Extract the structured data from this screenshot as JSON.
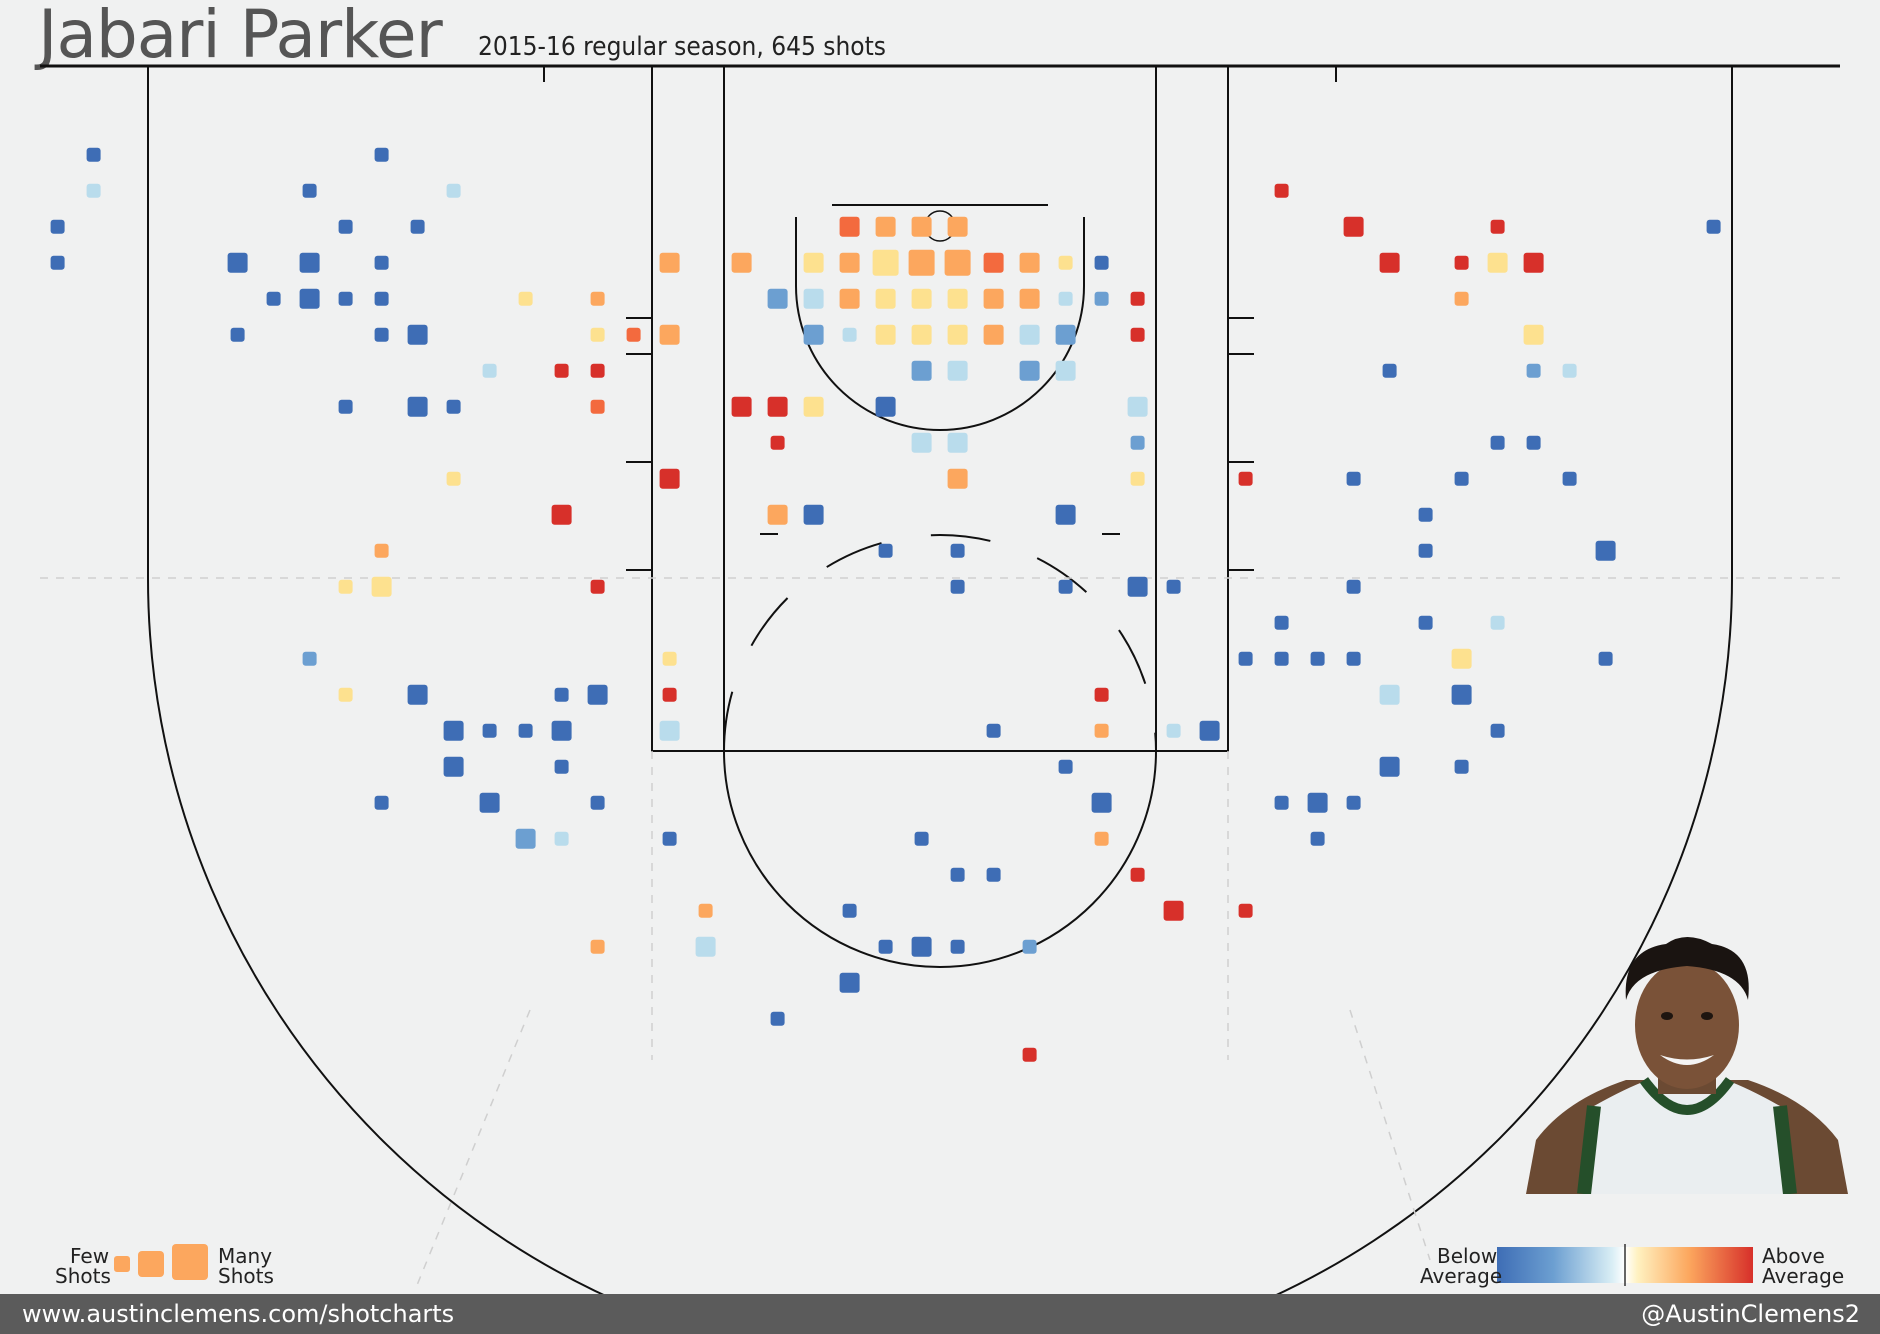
{
  "header": {
    "title": "Jabari Parker",
    "subtitle": "2015-16 regular season, 645 shots"
  },
  "legend": {
    "size_low": "Few",
    "size_low2": "Shots",
    "size_high": "Many",
    "size_high2": "Shots",
    "color_low": "Below",
    "color_low2": "Average",
    "color_high": "Above",
    "color_high2": "Average"
  },
  "footer": {
    "website": "www.austinclemens.com/shotcharts",
    "handle": "@AustinClemens2"
  },
  "colors": {
    "background": "#f0f1f1",
    "line": "#111111",
    "footer": "#5b5b5b",
    "scale": [
      "#3e6db5",
      "#6c9fd1",
      "#b9dcec",
      "#fde18f",
      "#fca75e",
      "#f36a3e",
      "#d7302a"
    ]
  },
  "chart_data": {
    "type": "scatter",
    "title": "Jabari Parker",
    "subtitle": "2015-16 regular season, 645 shots",
    "x_unit": "court column",
    "y_unit": "court row",
    "size_scale": "Few Shots to Many Shots",
    "color_scale": "Below Average to Above Average",
    "points": [
      {
        "x": 2.6,
        "y": 4.3,
        "c": 0,
        "s": 1
      },
      {
        "x": 2.6,
        "y": 5.3,
        "c": 2,
        "s": 1
      },
      {
        "x": 1.6,
        "y": 6.3,
        "c": 0,
        "s": 1
      },
      {
        "x": 1.6,
        "y": 7.3,
        "c": 0,
        "s": 1
      },
      {
        "x": 10.6,
        "y": 4.3,
        "c": 0,
        "s": 1
      },
      {
        "x": 8.6,
        "y": 5.3,
        "c": 0,
        "s": 1
      },
      {
        "x": 12.6,
        "y": 5.3,
        "c": 2,
        "s": 1
      },
      {
        "x": 9.6,
        "y": 6.3,
        "c": 0,
        "s": 1
      },
      {
        "x": 11.6,
        "y": 6.3,
        "c": 0,
        "s": 1
      },
      {
        "x": 6.6,
        "y": 7.3,
        "c": 0,
        "s": 2
      },
      {
        "x": 8.6,
        "y": 7.3,
        "c": 0,
        "s": 2
      },
      {
        "x": 10.6,
        "y": 7.3,
        "c": 0,
        "s": 1
      },
      {
        "x": 7.6,
        "y": 8.3,
        "c": 0,
        "s": 1
      },
      {
        "x": 8.6,
        "y": 8.3,
        "c": 0,
        "s": 2
      },
      {
        "x": 9.6,
        "y": 8.3,
        "c": 0,
        "s": 1
      },
      {
        "x": 10.6,
        "y": 8.3,
        "c": 0,
        "s": 1
      },
      {
        "x": 14.6,
        "y": 8.3,
        "c": 3,
        "s": 1
      },
      {
        "x": 16.6,
        "y": 8.3,
        "c": 4,
        "s": 1
      },
      {
        "x": 6.6,
        "y": 9.3,
        "c": 0,
        "s": 1
      },
      {
        "x": 10.6,
        "y": 9.3,
        "c": 0,
        "s": 1
      },
      {
        "x": 11.6,
        "y": 9.3,
        "c": 0,
        "s": 2
      },
      {
        "x": 16.6,
        "y": 9.3,
        "c": 3,
        "s": 1
      },
      {
        "x": 17.6,
        "y": 9.3,
        "c": 5,
        "s": 1
      },
      {
        "x": 13.6,
        "y": 10.3,
        "c": 2,
        "s": 1
      },
      {
        "x": 15.6,
        "y": 10.3,
        "c": 6,
        "s": 1
      },
      {
        "x": 16.6,
        "y": 10.3,
        "c": 6,
        "s": 1
      },
      {
        "x": 9.6,
        "y": 11.3,
        "c": 0,
        "s": 1
      },
      {
        "x": 11.6,
        "y": 11.3,
        "c": 0,
        "s": 2
      },
      {
        "x": 12.6,
        "y": 11.3,
        "c": 0,
        "s": 1
      },
      {
        "x": 16.6,
        "y": 11.3,
        "c": 5,
        "s": 1
      },
      {
        "x": 12.6,
        "y": 13.3,
        "c": 3,
        "s": 1
      },
      {
        "x": 15.6,
        "y": 14.3,
        "c": 6,
        "s": 2
      },
      {
        "x": 10.6,
        "y": 15.3,
        "c": 4,
        "s": 1
      },
      {
        "x": 9.6,
        "y": 16.3,
        "c": 3,
        "s": 1
      },
      {
        "x": 10.6,
        "y": 16.3,
        "c": 3,
        "s": 2
      },
      {
        "x": 16.6,
        "y": 16.3,
        "c": 6,
        "s": 1
      },
      {
        "x": 8.6,
        "y": 18.3,
        "c": 1,
        "s": 1
      },
      {
        "x": 9.6,
        "y": 19.3,
        "c": 3,
        "s": 1
      },
      {
        "x": 11.6,
        "y": 19.3,
        "c": 0,
        "s": 2
      },
      {
        "x": 15.6,
        "y": 19.3,
        "c": 0,
        "s": 1
      },
      {
        "x": 16.6,
        "y": 19.3,
        "c": 0,
        "s": 2
      },
      {
        "x": 12.6,
        "y": 20.3,
        "c": 0,
        "s": 2
      },
      {
        "x": 13.6,
        "y": 20.3,
        "c": 0,
        "s": 1
      },
      {
        "x": 14.6,
        "y": 20.3,
        "c": 0,
        "s": 1
      },
      {
        "x": 15.6,
        "y": 20.3,
        "c": 0,
        "s": 2
      },
      {
        "x": 12.6,
        "y": 21.3,
        "c": 0,
        "s": 2
      },
      {
        "x": 15.6,
        "y": 21.3,
        "c": 0,
        "s": 1
      },
      {
        "x": 10.6,
        "y": 22.3,
        "c": 0,
        "s": 1
      },
      {
        "x": 13.6,
        "y": 22.3,
        "c": 0,
        "s": 2
      },
      {
        "x": 16.6,
        "y": 22.3,
        "c": 0,
        "s": 1
      },
      {
        "x": 14.6,
        "y": 23.3,
        "c": 1,
        "s": 2
      },
      {
        "x": 15.6,
        "y": 23.3,
        "c": 2,
        "s": 1
      },
      {
        "x": 16.6,
        "y": 26.3,
        "c": 4,
        "s": 1
      },
      {
        "x": 18.6,
        "y": 7.3,
        "c": 4,
        "s": 2
      },
      {
        "x": 20.6,
        "y": 7.3,
        "c": 4,
        "s": 2
      },
      {
        "x": 22.6,
        "y": 7.3,
        "c": 3,
        "s": 2
      },
      {
        "x": 23.6,
        "y": 7.3,
        "c": 4,
        "s": 2
      },
      {
        "x": 24.6,
        "y": 7.3,
        "c": 3,
        "s": 3
      },
      {
        "x": 25.6,
        "y": 7.3,
        "c": 4,
        "s": 3
      },
      {
        "x": 26.6,
        "y": 7.3,
        "c": 4,
        "s": 3
      },
      {
        "x": 27.6,
        "y": 7.3,
        "c": 5,
        "s": 2
      },
      {
        "x": 28.6,
        "y": 7.3,
        "c": 4,
        "s": 2
      },
      {
        "x": 29.6,
        "y": 7.3,
        "c": 3,
        "s": 1
      },
      {
        "x": 30.6,
        "y": 7.3,
        "c": 0,
        "s": 1
      },
      {
        "x": 23.6,
        "y": 6.3,
        "c": 5,
        "s": 2
      },
      {
        "x": 24.6,
        "y": 6.3,
        "c": 4,
        "s": 2
      },
      {
        "x": 25.6,
        "y": 6.3,
        "c": 4,
        "s": 2
      },
      {
        "x": 26.6,
        "y": 6.3,
        "c": 4,
        "s": 2
      },
      {
        "x": 21.6,
        "y": 8.3,
        "c": 1,
        "s": 2
      },
      {
        "x": 22.6,
        "y": 8.3,
        "c": 2,
        "s": 2
      },
      {
        "x": 23.6,
        "y": 8.3,
        "c": 4,
        "s": 2
      },
      {
        "x": 24.6,
        "y": 8.3,
        "c": 3,
        "s": 2
      },
      {
        "x": 25.6,
        "y": 8.3,
        "c": 3,
        "s": 2
      },
      {
        "x": 26.6,
        "y": 8.3,
        "c": 3,
        "s": 2
      },
      {
        "x": 27.6,
        "y": 8.3,
        "c": 4,
        "s": 2
      },
      {
        "x": 28.6,
        "y": 8.3,
        "c": 4,
        "s": 2
      },
      {
        "x": 29.6,
        "y": 8.3,
        "c": 2,
        "s": 1
      },
      {
        "x": 30.6,
        "y": 8.3,
        "c": 1,
        "s": 1
      },
      {
        "x": 31.6,
        "y": 8.3,
        "c": 6,
        "s": 1
      },
      {
        "x": 18.6,
        "y": 9.3,
        "c": 4,
        "s": 2
      },
      {
        "x": 22.6,
        "y": 9.3,
        "c": 1,
        "s": 2
      },
      {
        "x": 23.6,
        "y": 9.3,
        "c": 2,
        "s": 1
      },
      {
        "x": 24.6,
        "y": 9.3,
        "c": 3,
        "s": 2
      },
      {
        "x": 25.6,
        "y": 9.3,
        "c": 3,
        "s": 2
      },
      {
        "x": 26.6,
        "y": 9.3,
        "c": 3,
        "s": 2
      },
      {
        "x": 27.6,
        "y": 9.3,
        "c": 4,
        "s": 2
      },
      {
        "x": 28.6,
        "y": 9.3,
        "c": 2,
        "s": 2
      },
      {
        "x": 29.6,
        "y": 9.3,
        "c": 1,
        "s": 2
      },
      {
        "x": 31.6,
        "y": 9.3,
        "c": 6,
        "s": 1
      },
      {
        "x": 25.6,
        "y": 10.3,
        "c": 1,
        "s": 2
      },
      {
        "x": 26.6,
        "y": 10.3,
        "c": 2,
        "s": 2
      },
      {
        "x": 28.6,
        "y": 10.3,
        "c": 1,
        "s": 2
      },
      {
        "x": 29.6,
        "y": 10.3,
        "c": 2,
        "s": 2
      },
      {
        "x": 20.6,
        "y": 11.3,
        "c": 6,
        "s": 2
      },
      {
        "x": 21.6,
        "y": 11.3,
        "c": 6,
        "s": 2
      },
      {
        "x": 22.6,
        "y": 11.3,
        "c": 3,
        "s": 2
      },
      {
        "x": 24.6,
        "y": 11.3,
        "c": 0,
        "s": 2
      },
      {
        "x": 31.6,
        "y": 11.3,
        "c": 2,
        "s": 2
      },
      {
        "x": 21.6,
        "y": 12.3,
        "c": 6,
        "s": 1
      },
      {
        "x": 25.6,
        "y": 12.3,
        "c": 2,
        "s": 2
      },
      {
        "x": 26.6,
        "y": 12.3,
        "c": 2,
        "s": 2
      },
      {
        "x": 31.6,
        "y": 12.3,
        "c": 1,
        "s": 1
      },
      {
        "x": 18.6,
        "y": 13.3,
        "c": 6,
        "s": 2
      },
      {
        "x": 26.6,
        "y": 13.3,
        "c": 4,
        "s": 2
      },
      {
        "x": 31.6,
        "y": 13.3,
        "c": 3,
        "s": 1
      },
      {
        "x": 21.6,
        "y": 14.3,
        "c": 4,
        "s": 2
      },
      {
        "x": 22.6,
        "y": 14.3,
        "c": 0,
        "s": 2
      },
      {
        "x": 29.6,
        "y": 14.3,
        "c": 0,
        "s": 2
      },
      {
        "x": 24.6,
        "y": 15.3,
        "c": 0,
        "s": 1
      },
      {
        "x": 26.6,
        "y": 15.3,
        "c": 0,
        "s": 1
      },
      {
        "x": 26.6,
        "y": 16.3,
        "c": 0,
        "s": 1
      },
      {
        "x": 29.6,
        "y": 16.3,
        "c": 0,
        "s": 1
      },
      {
        "x": 31.6,
        "y": 16.3,
        "c": 0,
        "s": 2
      },
      {
        "x": 32.6,
        "y": 16.3,
        "c": 0,
        "s": 1
      },
      {
        "x": 18.6,
        "y": 18.3,
        "c": 3,
        "s": 1
      },
      {
        "x": 18.6,
        "y": 19.3,
        "c": 6,
        "s": 1
      },
      {
        "x": 30.6,
        "y": 19.3,
        "c": 6,
        "s": 1
      },
      {
        "x": 18.6,
        "y": 20.3,
        "c": 2,
        "s": 2
      },
      {
        "x": 27.6,
        "y": 20.3,
        "c": 0,
        "s": 1
      },
      {
        "x": 30.6,
        "y": 20.3,
        "c": 4,
        "s": 1
      },
      {
        "x": 32.6,
        "y": 20.3,
        "c": 2,
        "s": 1
      },
      {
        "x": 33.6,
        "y": 20.3,
        "c": 0,
        "s": 2
      },
      {
        "x": 29.6,
        "y": 21.3,
        "c": 0,
        "s": 1
      },
      {
        "x": 30.6,
        "y": 22.3,
        "c": 0,
        "s": 2
      },
      {
        "x": 18.6,
        "y": 23.3,
        "c": 0,
        "s": 1
      },
      {
        "x": 25.6,
        "y": 23.3,
        "c": 0,
        "s": 1
      },
      {
        "x": 30.6,
        "y": 23.3,
        "c": 4,
        "s": 1
      },
      {
        "x": 26.6,
        "y": 24.3,
        "c": 0,
        "s": 1
      },
      {
        "x": 27.6,
        "y": 24.3,
        "c": 0,
        "s": 1
      },
      {
        "x": 31.6,
        "y": 24.3,
        "c": 6,
        "s": 1
      },
      {
        "x": 19.6,
        "y": 25.3,
        "c": 4,
        "s": 1
      },
      {
        "x": 23.6,
        "y": 25.3,
        "c": 0,
        "s": 1
      },
      {
        "x": 32.6,
        "y": 25.3,
        "c": 6,
        "s": 2
      },
      {
        "x": 34.6,
        "y": 25.3,
        "c": 6,
        "s": 1
      },
      {
        "x": 19.6,
        "y": 26.3,
        "c": 2,
        "s": 2
      },
      {
        "x": 24.6,
        "y": 26.3,
        "c": 0,
        "s": 1
      },
      {
        "x": 25.6,
        "y": 26.3,
        "c": 0,
        "s": 2
      },
      {
        "x": 26.6,
        "y": 26.3,
        "c": 0,
        "s": 1
      },
      {
        "x": 28.6,
        "y": 26.3,
        "c": 1,
        "s": 1
      },
      {
        "x": 23.6,
        "y": 27.3,
        "c": 0,
        "s": 2
      },
      {
        "x": 21.6,
        "y": 28.3,
        "c": 0,
        "s": 1
      },
      {
        "x": 28.6,
        "y": 29.3,
        "c": 6,
        "s": 1
      },
      {
        "x": 35.6,
        "y": 5.3,
        "c": 6,
        "s": 1
      },
      {
        "x": 37.6,
        "y": 6.3,
        "c": 6,
        "s": 2
      },
      {
        "x": 41.6,
        "y": 6.3,
        "c": 6,
        "s": 1
      },
      {
        "x": 47.6,
        "y": 6.3,
        "c": 0,
        "s": 1
      },
      {
        "x": 38.6,
        "y": 7.3,
        "c": 6,
        "s": 2
      },
      {
        "x": 40.6,
        "y": 7.3,
        "c": 6,
        "s": 1
      },
      {
        "x": 41.6,
        "y": 7.3,
        "c": 3,
        "s": 2
      },
      {
        "x": 42.6,
        "y": 7.3,
        "c": 6,
        "s": 2
      },
      {
        "x": 40.6,
        "y": 8.3,
        "c": 4,
        "s": 1
      },
      {
        "x": 42.6,
        "y": 9.3,
        "c": 3,
        "s": 2
      },
      {
        "x": 38.6,
        "y": 10.3,
        "c": 0,
        "s": 1
      },
      {
        "x": 42.6,
        "y": 10.3,
        "c": 1,
        "s": 1
      },
      {
        "x": 43.6,
        "y": 10.3,
        "c": 2,
        "s": 1
      },
      {
        "x": 41.6,
        "y": 12.3,
        "c": 0,
        "s": 1
      },
      {
        "x": 42.6,
        "y": 12.3,
        "c": 0,
        "s": 1
      },
      {
        "x": 34.6,
        "y": 13.3,
        "c": 6,
        "s": 1
      },
      {
        "x": 37.6,
        "y": 13.3,
        "c": 0,
        "s": 1
      },
      {
        "x": 40.6,
        "y": 13.3,
        "c": 0,
        "s": 1
      },
      {
        "x": 43.6,
        "y": 13.3,
        "c": 0,
        "s": 1
      },
      {
        "x": 39.6,
        "y": 14.3,
        "c": 0,
        "s": 1
      },
      {
        "x": 39.6,
        "y": 15.3,
        "c": 0,
        "s": 1
      },
      {
        "x": 44.6,
        "y": 15.3,
        "c": 0,
        "s": 2
      },
      {
        "x": 37.6,
        "y": 16.3,
        "c": 0,
        "s": 1
      },
      {
        "x": 35.6,
        "y": 17.3,
        "c": 0,
        "s": 1
      },
      {
        "x": 39.6,
        "y": 17.3,
        "c": 0,
        "s": 1
      },
      {
        "x": 41.6,
        "y": 17.3,
        "c": 2,
        "s": 1
      },
      {
        "x": 34.6,
        "y": 18.3,
        "c": 0,
        "s": 1
      },
      {
        "x": 35.6,
        "y": 18.3,
        "c": 0,
        "s": 1
      },
      {
        "x": 36.6,
        "y": 18.3,
        "c": 0,
        "s": 1
      },
      {
        "x": 37.6,
        "y": 18.3,
        "c": 0,
        "s": 1
      },
      {
        "x": 40.6,
        "y": 18.3,
        "c": 3,
        "s": 2
      },
      {
        "x": 44.6,
        "y": 18.3,
        "c": 0,
        "s": 1
      },
      {
        "x": 38.6,
        "y": 19.3,
        "c": 2,
        "s": 2
      },
      {
        "x": 40.6,
        "y": 19.3,
        "c": 0,
        "s": 2
      },
      {
        "x": 41.6,
        "y": 20.3,
        "c": 0,
        "s": 1
      },
      {
        "x": 38.6,
        "y": 21.3,
        "c": 0,
        "s": 2
      },
      {
        "x": 40.6,
        "y": 21.3,
        "c": 0,
        "s": 1
      },
      {
        "x": 35.6,
        "y": 22.3,
        "c": 0,
        "s": 1
      },
      {
        "x": 36.6,
        "y": 22.3,
        "c": 0,
        "s": 2
      },
      {
        "x": 37.6,
        "y": 22.3,
        "c": 0,
        "s": 1
      },
      {
        "x": 36.6,
        "y": 23.3,
        "c": 0,
        "s": 1
      }
    ]
  }
}
